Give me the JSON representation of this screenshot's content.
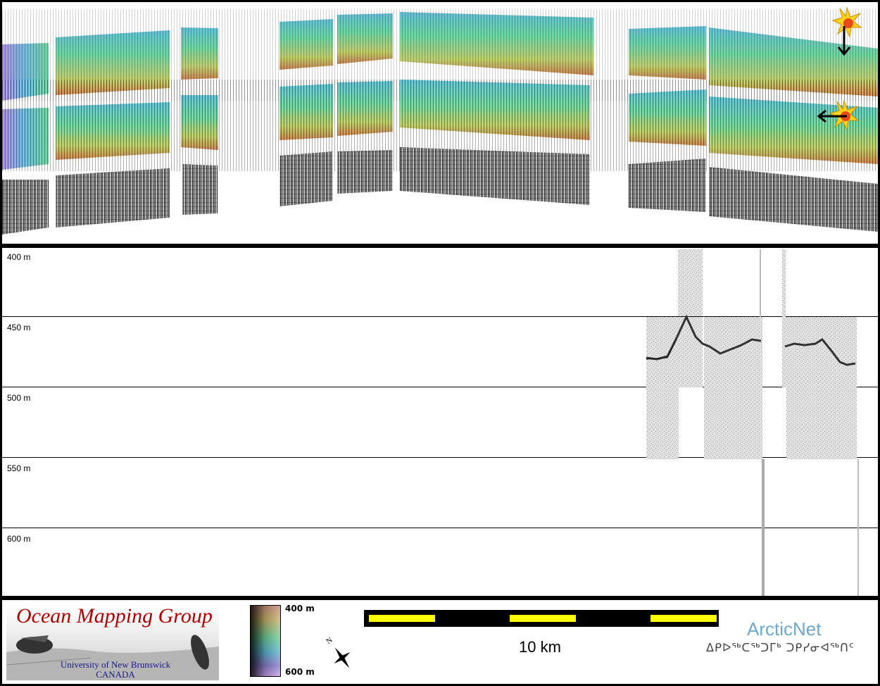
{
  "depth_axis": {
    "labels": [
      "400 m",
      "450 m",
      "500 m",
      "550 m",
      "600 m"
    ]
  },
  "legend": {
    "logo_title": "Ocean Mapping Group",
    "logo_university": "University of New Brunswick",
    "logo_country": "CANADA",
    "colorbar_top": "400 m",
    "colorbar_bottom": "600 m",
    "scale_bar_label": "10 km",
    "north_letter": "N",
    "partner_name": "ArcticNet",
    "partner_syllabics": "ᐃᑭᐅᖅᑕᖅᑐᒥᒃ ᑐᑭᓯᓂᐊᖅᑎᑦ"
  },
  "colors": {
    "scale_bar_yellow": "#ffff00",
    "scale_bar_black": "#000000",
    "logo_red": "#b00000",
    "partner_blue": "#6fa8c8"
  }
}
